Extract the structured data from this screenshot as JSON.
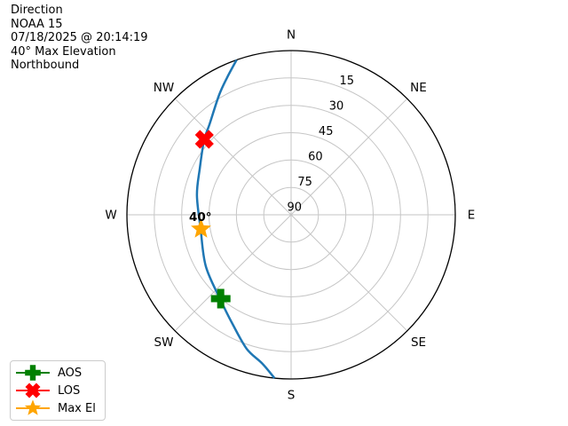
{
  "header": {
    "lines": [
      "Direction",
      "NOAA 15",
      "07/18/2025 @ 20:14:19",
      "40° Max Elevation",
      "Northbound"
    ]
  },
  "colors": {
    "track_blue": "#1f77b4",
    "aos_green": "#008000",
    "los_red": "#ff0000",
    "maxel_orange": "#ffa500",
    "grid_gray": "#c6c6c6",
    "outline_black": "#000000"
  },
  "legend": {
    "items": [
      {
        "label": "AOS",
        "marker": "plus",
        "color": "#008000"
      },
      {
        "label": "LOS",
        "marker": "x",
        "color": "#ff0000"
      },
      {
        "label": "Max El",
        "marker": "star",
        "color": "#ffa500"
      }
    ]
  },
  "chart_data": {
    "type": "polar",
    "subtype": "satellite-pass-sky-plot",
    "title": "Direction",
    "satellite": "NOAA 15",
    "timestamp": "07/18/2025 @ 20:14:19",
    "max_elevation_deg": 40,
    "pass_direction": "Northbound",
    "compass_labels": [
      "N",
      "NE",
      "E",
      "SE",
      "S",
      "SW",
      "W",
      "NW"
    ],
    "elevation_rings_deg": [
      15,
      30,
      45,
      60,
      75,
      90
    ],
    "radial_label_azimuth_deg": 22.5,
    "grid": true,
    "track": {
      "name": "satellite-track",
      "color": "#1f77b4",
      "points_az_el": [
        [
          185.8,
          0
        ],
        [
          191,
          7
        ],
        [
          198.3,
          12.6
        ],
        [
          208.2,
          22.1
        ],
        [
          220.1,
          29.6
        ],
        [
          238.9,
          35.4
        ],
        [
          261,
          39.8
        ],
        [
          281.7,
          37.3
        ],
        [
          296.8,
          33.9
        ],
        [
          310.6,
          27.2
        ],
        [
          318,
          23.2
        ],
        [
          329,
          13.4
        ],
        [
          335,
          7
        ],
        [
          340.6,
          0
        ]
      ]
    },
    "markers": [
      {
        "name": "AOS",
        "shape": "plus",
        "color": "#008000",
        "az": 220,
        "el": 30
      },
      {
        "name": "LOS",
        "shape": "x",
        "color": "#ff0000",
        "az": 311,
        "el": 27
      },
      {
        "name": "Max El",
        "shape": "star",
        "color": "#ffa500",
        "az": 261,
        "el": 40,
        "annotation": "40°"
      }
    ]
  }
}
